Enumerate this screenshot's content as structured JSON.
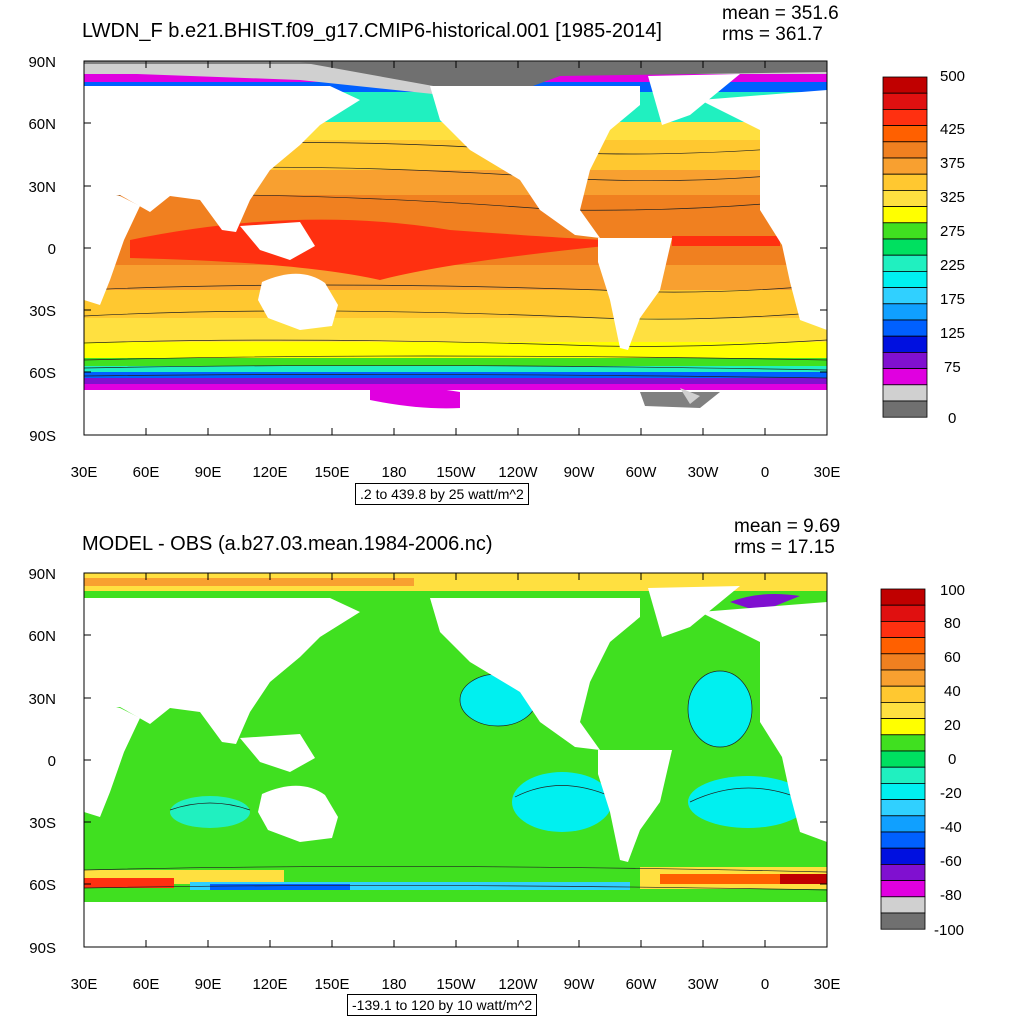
{
  "panels": [
    {
      "title": "LWDN_F b.e21.BHIST.f09_g17.CMIP6-historical.001 [1985-2014]",
      "mean": "mean = 351.6",
      "rms": "rms = 361.7",
      "range_note": ".2 to 439.8 by 25 watt/m^2",
      "y_ticks": [
        "90N",
        "60N",
        "30N",
        "0",
        "30S",
        "60S",
        "90S"
      ],
      "x_ticks": [
        "30E",
        "60E",
        "90E",
        "120E",
        "150E",
        "180",
        "150W",
        "120W",
        "90W",
        "60W",
        "30W",
        "0",
        "30E"
      ],
      "colorbar_labels": [
        "500",
        "425",
        "375",
        "325",
        "275",
        "225",
        "175",
        "125",
        "75",
        "0"
      ],
      "colorbar_colors": [
        "#c00000",
        "#e01010",
        "#ff3010",
        "#ff6000",
        "#f08020",
        "#f8a030",
        "#ffc830",
        "#ffe040",
        "#ffff00",
        "#40e020",
        "#00e060",
        "#20f0c0",
        "#00f0f0",
        "#30d0ff",
        "#10a0ff",
        "#0060ff",
        "#0010e0",
        "#8010d0",
        "#e000e0",
        "#d0d0d0",
        "#707070"
      ]
    },
    {
      "title": "MODEL - OBS (a.b27.03.mean.1984-2006.nc)",
      "mean": "mean = 9.69",
      "rms": "rms = 17.15",
      "range_note": "-139.1 to 120 by 10 watt/m^2",
      "y_ticks": [
        "90N",
        "60N",
        "30N",
        "0",
        "30S",
        "60S",
        "90S"
      ],
      "x_ticks": [
        "30E",
        "60E",
        "90E",
        "120E",
        "150E",
        "180",
        "150W",
        "120W",
        "90W",
        "60W",
        "30W",
        "0",
        "30E"
      ],
      "colorbar_labels": [
        "100",
        "80",
        "60",
        "40",
        "20",
        "0",
        "-20",
        "-40",
        "-60",
        "-80",
        "-100"
      ],
      "colorbar_colors": [
        "#c00000",
        "#e01010",
        "#ff3010",
        "#ff6000",
        "#f08020",
        "#f8a030",
        "#ffc830",
        "#ffe040",
        "#ffff00",
        "#40e020",
        "#00e060",
        "#20f0c0",
        "#00f0f0",
        "#30d0ff",
        "#10a0ff",
        "#0060ff",
        "#0010e0",
        "#8010d0",
        "#e000e0",
        "#d0d0d0",
        "#707070"
      ]
    }
  ]
}
